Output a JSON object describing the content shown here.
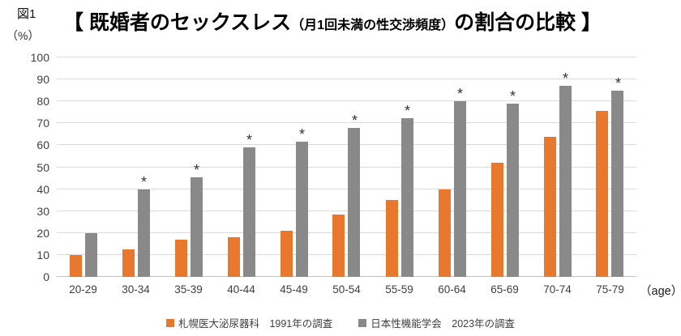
{
  "figure_label": "図1",
  "y_axis_unit": "（%）",
  "title": {
    "prefix": "【 既婚者のセックスレス",
    "small": "（月1回未満の性交渉頻度）",
    "suffix": "の割合の比較 】"
  },
  "x_axis_suffix": "（age）",
  "colors": {
    "series_1991": "#e8782d",
    "series_2023": "#898989",
    "gridline": "#dadada",
    "axis_text": "#3f3f3f"
  },
  "legend": [
    {
      "label": "札幌医大泌尿器科　1991年の調査",
      "color_key": "series_1991"
    },
    {
      "label": "日本性機能学会　2023年の調査",
      "color_key": "series_2023"
    }
  ],
  "chart_data": {
    "type": "bar",
    "title": "【 既婚者のセックスレス（月1回未満の性交渉頻度）の割合の比較 】",
    "xlabel": "（age）",
    "ylabel": "（%）",
    "ylim": [
      0,
      100
    ],
    "ytick_interval": 10,
    "grid": true,
    "legend_position": "bottom",
    "categories": [
      "20-29",
      "30-34",
      "35-39",
      "40-44",
      "45-49",
      "50-54",
      "55-59",
      "60-64",
      "65-69",
      "70-74",
      "75-79"
    ],
    "series": [
      {
        "name": "札幌医大泌尿器科　1991年の調査",
        "values": [
          10,
          12.5,
          17,
          18,
          21,
          28.5,
          35,
          40,
          52,
          64,
          75.5
        ]
      },
      {
        "name": "日本性機能学会　2023年の調査",
        "values": [
          20,
          40,
          45.5,
          59,
          61.5,
          68,
          72.5,
          80,
          79,
          87,
          85
        ]
      }
    ],
    "asterisk_marks": [
      false,
      true,
      true,
      true,
      true,
      true,
      true,
      true,
      true,
      true,
      true
    ],
    "asterisk_on_series": "日本性機能学会　2023年の調査"
  }
}
